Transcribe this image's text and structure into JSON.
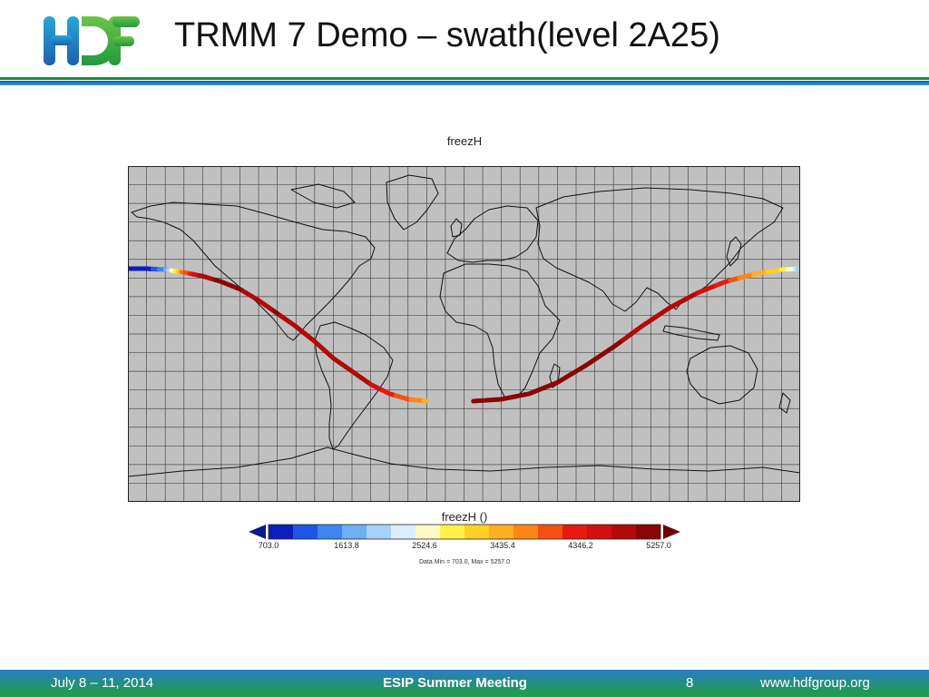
{
  "slide": {
    "title": "TRMM 7 Demo – swath(level 2A25)",
    "logo_text": "HDF"
  },
  "map": {
    "title": "freezH",
    "colorbar_title": "freezH ()",
    "colorbar_labels": [
      "703.0",
      "1613.8",
      "2524.6",
      "3435.4",
      "4346.2",
      "5257.0"
    ],
    "data_range_text": "Data Min = 703.0, Max = 5257.0",
    "colorbar_colors": [
      "#0a1fbe",
      "#1f55e6",
      "#3d86ef",
      "#6eaef5",
      "#a6d2fa",
      "#dcedfc",
      "#fff9c4",
      "#fff04a",
      "#ffd022",
      "#ffae22",
      "#ff8616",
      "#f35210",
      "#e81910",
      "#d20f12",
      "#b20a0a",
      "#8a0606"
    ],
    "ocean_color": "#c0c0c0"
  },
  "chart_data": {
    "type": "scatter",
    "xlim": [
      -180,
      180
    ],
    "ylim": [
      -90,
      90
    ],
    "value_range": [
      703.0,
      5257.0
    ],
    "grid": true,
    "swath_segments": [
      {
        "points": [
          {
            "lon": -180,
            "lat": 35,
            "value": 900
          },
          {
            "lon": -170,
            "lat": 35,
            "value": 800
          },
          {
            "lon": -160,
            "lat": 34.5,
            "value": 1500
          },
          {
            "lon": -150,
            "lat": 33,
            "value": 3800
          },
          {
            "lon": -140,
            "lat": 31,
            "value": 4900
          },
          {
            "lon": -130,
            "lat": 28,
            "value": 5000
          },
          {
            "lon": -120,
            "lat": 24,
            "value": 5000
          },
          {
            "lon": -110,
            "lat": 18,
            "value": 4800
          },
          {
            "lon": -100,
            "lat": 11,
            "value": 5000
          },
          {
            "lon": -90,
            "lat": 4,
            "value": 4800
          },
          {
            "lon": -80,
            "lat": -4,
            "value": 4800
          },
          {
            "lon": -70,
            "lat": -13,
            "value": 4800
          },
          {
            "lon": -60,
            "lat": -20,
            "value": 4800
          },
          {
            "lon": -50,
            "lat": -27,
            "value": 4700
          },
          {
            "lon": -40,
            "lat": -32,
            "value": 4200
          },
          {
            "lon": -30,
            "lat": -35,
            "value": 3900
          },
          {
            "lon": -20,
            "lat": -36,
            "value": 3500
          }
        ]
      },
      {
        "points": [
          {
            "lon": 5,
            "lat": -36,
            "value": 5250
          },
          {
            "lon": 20,
            "lat": -35,
            "value": 5200
          },
          {
            "lon": 35,
            "lat": -32,
            "value": 5100
          },
          {
            "lon": 50,
            "lat": -26,
            "value": 5000
          },
          {
            "lon": 65,
            "lat": -17,
            "value": 5000
          },
          {
            "lon": 80,
            "lat": -7,
            "value": 5000
          },
          {
            "lon": 95,
            "lat": 4,
            "value": 4900
          },
          {
            "lon": 110,
            "lat": 14,
            "value": 4800
          },
          {
            "lon": 125,
            "lat": 22,
            "value": 4700
          },
          {
            "lon": 140,
            "lat": 28,
            "value": 4200
          },
          {
            "lon": 155,
            "lat": 32,
            "value": 3500
          },
          {
            "lon": 170,
            "lat": 34.5,
            "value": 3000
          },
          {
            "lon": 180,
            "lat": 35,
            "value": 2000
          }
        ]
      }
    ]
  },
  "footer": {
    "date": "July 8 – 11, 2014",
    "meeting": "ESIP Summer Meeting",
    "page": "8",
    "url": "www.hdfgroup.org"
  }
}
